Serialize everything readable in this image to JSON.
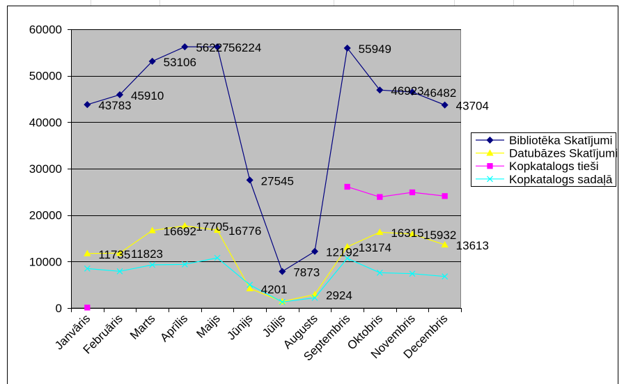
{
  "chart_data": {
    "type": "line",
    "categories": [
      "Janvāris",
      "Februāris",
      "Marts",
      "Aprīlis",
      "Maijs",
      "Jūnijs",
      "Jūlijs",
      "Augusts",
      "Septembris",
      "Oktobris",
      "Novembris",
      "Decembris"
    ],
    "ylim": [
      0,
      60000
    ],
    "y_ticks": [
      0,
      10000,
      20000,
      30000,
      40000,
      50000,
      60000
    ],
    "grid": true,
    "legend": "right",
    "plot_background": "#C0C0C0",
    "series": [
      {
        "name": "Bibliotēka Skatījumi",
        "color": "#000080",
        "marker": "diamond",
        "values": [
          43783,
          45910,
          53106,
          56227,
          56224,
          27545,
          7873,
          12192,
          55949,
          46923,
          46482,
          43704
        ],
        "labels": [
          "43783",
          "45910",
          "53106",
          "56227",
          "56224",
          "27545",
          "7873",
          "12192",
          "55949",
          "46923",
          "46482",
          "43704"
        ]
      },
      {
        "name": "Datubāzes Skatījumi",
        "color": "#FFFF00",
        "marker": "triangle",
        "values": [
          11735,
          11823,
          16692,
          17705,
          16776,
          4201,
          1400,
          2924,
          13174,
          16315,
          15932,
          13613
        ],
        "labels": [
          "11735",
          "11823",
          "16692",
          "17705",
          "16776",
          "4201",
          null,
          "2924",
          "13174",
          "16315",
          "15932",
          "13613"
        ]
      },
      {
        "name": "Kopkatalogs tieši",
        "color": "#FF00FF",
        "marker": "square",
        "values": [
          100,
          null,
          null,
          null,
          null,
          null,
          null,
          null,
          26100,
          23900,
          24900,
          24100
        ]
      },
      {
        "name": "Kopkatalogs sadaļā",
        "color": "#00FFFF",
        "marker": "cross",
        "values": [
          8500,
          7900,
          9300,
          9400,
          10800,
          5000,
          1300,
          2200,
          10700,
          7600,
          7400,
          6800
        ]
      }
    ]
  }
}
